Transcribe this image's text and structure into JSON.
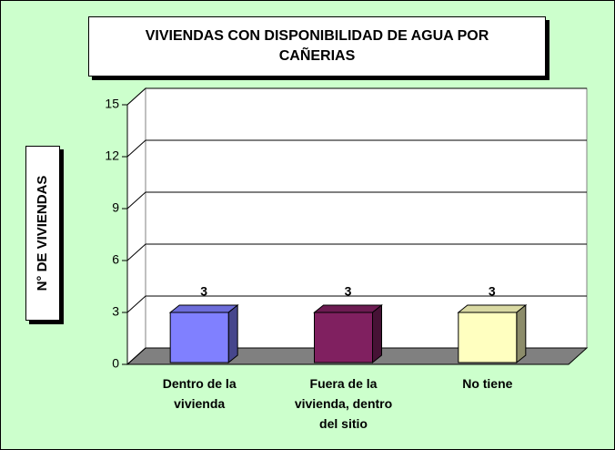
{
  "chart_data": {
    "type": "bar3d",
    "title": "VIVIENDAS CON DISPONIBILIDAD DE AGUA POR CAÑERIAS",
    "y_label": "N° DE VIVIENDAS",
    "categories": [
      "Dentro de la vivienda",
      "Fuera de la vivienda, dentro del sitio",
      "No tiene"
    ],
    "values": [
      3,
      3,
      3
    ],
    "colors": [
      "#8080ff",
      "#802060",
      "#ffffc0"
    ],
    "ylim": [
      0,
      15
    ],
    "yticks": [
      0,
      3,
      6,
      9,
      12,
      15
    ],
    "grid": true
  }
}
